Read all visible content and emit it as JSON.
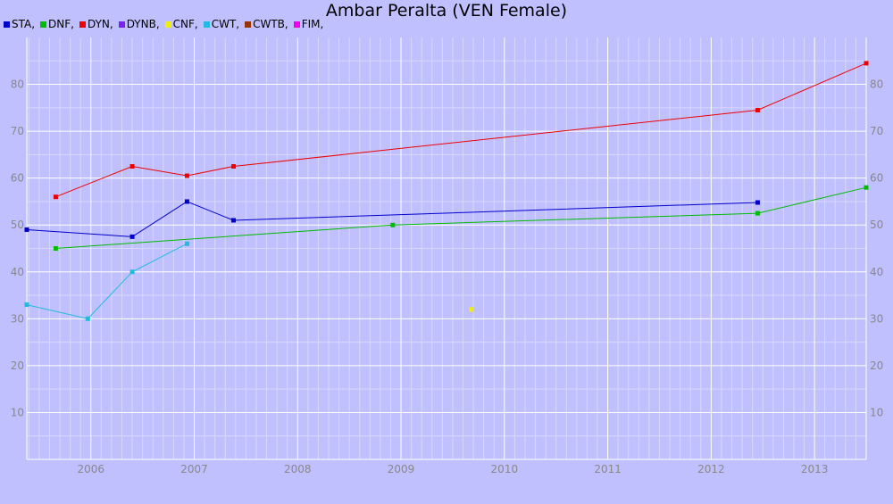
{
  "title": "Ambar Peralta (VEN Female)",
  "chart_data": {
    "type": "line",
    "title": "Ambar Peralta (VEN Female)",
    "xlabel": "",
    "ylabel": "",
    "xlim": [
      2005.38,
      2013.5
    ],
    "ylim": [
      0,
      90
    ],
    "grid": true,
    "legend_position": "top-left",
    "x_ticks": [
      "2006",
      "2007",
      "2008",
      "2009",
      "2010",
      "2011",
      "2012",
      "2013"
    ],
    "y_ticks": [
      10,
      20,
      30,
      40,
      50,
      60,
      70,
      80
    ],
    "legend": [
      {
        "label": "STA,",
        "color": "#0000cc"
      },
      {
        "label": "DNF,",
        "color": "#00bb00"
      },
      {
        "label": "DYN,",
        "color": "#ee0000"
      },
      {
        "label": "DYNB,",
        "color": "#7722ee"
      },
      {
        "label": "CNF,",
        "color": "#eeee00"
      },
      {
        "label": "CWT,",
        "color": "#22bbdd"
      },
      {
        "label": "CWTB,",
        "color": "#993300"
      },
      {
        "label": "FIM,",
        "color": "#ee00ee"
      }
    ],
    "series": [
      {
        "name": "STA",
        "color": "#0000cc",
        "points": [
          [
            2005.38,
            49
          ],
          [
            2006.4,
            47.5
          ],
          [
            2006.93,
            55
          ],
          [
            2007.38,
            51
          ],
          [
            2012.45,
            54.8
          ]
        ]
      },
      {
        "name": "DNF",
        "color": "#00bb00",
        "points": [
          [
            2005.66,
            45
          ],
          [
            2008.92,
            50
          ],
          [
            2012.45,
            52.5
          ],
          [
            2013.5,
            58
          ]
        ]
      },
      {
        "name": "DYN",
        "color": "#ee0000",
        "points": [
          [
            2005.66,
            56
          ],
          [
            2006.4,
            62.5
          ],
          [
            2006.93,
            60.5
          ],
          [
            2007.38,
            62.5
          ],
          [
            2012.45,
            74.5
          ],
          [
            2013.5,
            84.5
          ]
        ]
      },
      {
        "name": "CNF",
        "color": "#eeee00",
        "points": [
          [
            2009.68,
            32
          ]
        ]
      },
      {
        "name": "CWT",
        "color": "#22bbdd",
        "points": [
          [
            2005.38,
            33
          ],
          [
            2005.97,
            30
          ],
          [
            2006.4,
            40
          ],
          [
            2006.93,
            46
          ]
        ]
      }
    ]
  }
}
